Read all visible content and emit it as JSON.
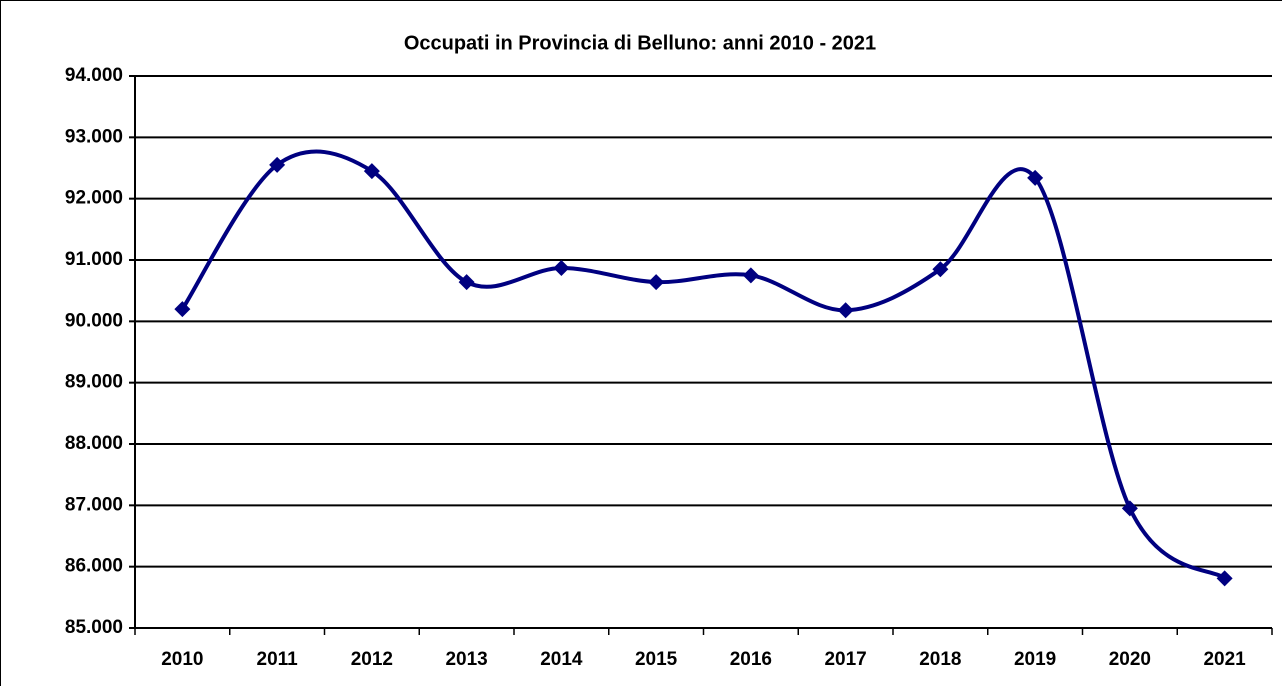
{
  "chart_data": {
    "type": "line",
    "title": "Occupati in Provincia di Belluno: anni 2010 - 2021",
    "categories": [
      "2010",
      "2011",
      "2012",
      "2013",
      "2014",
      "2015",
      "2016",
      "2017",
      "2018",
      "2019",
      "2020",
      "2021"
    ],
    "values": [
      90200,
      92550,
      92450,
      90640,
      90870,
      90640,
      90750,
      90180,
      90850,
      92340,
      86950,
      85810
    ],
    "color": "#000080",
    "smooth": true,
    "grid": true,
    "ylim": [
      85000,
      94000
    ],
    "yticks": [
      {
        "value": 85000,
        "label": "85.000"
      },
      {
        "value": 86000,
        "label": "86.000"
      },
      {
        "value": 87000,
        "label": "87.000"
      },
      {
        "value": 88000,
        "label": "88.000"
      },
      {
        "value": 89000,
        "label": "89.000"
      },
      {
        "value": 90000,
        "label": "90.000"
      },
      {
        "value": 91000,
        "label": "91.000"
      },
      {
        "value": 92000,
        "label": "92.000"
      },
      {
        "value": 93000,
        "label": "93.000"
      },
      {
        "value": 94000,
        "label": "94.000"
      }
    ]
  }
}
